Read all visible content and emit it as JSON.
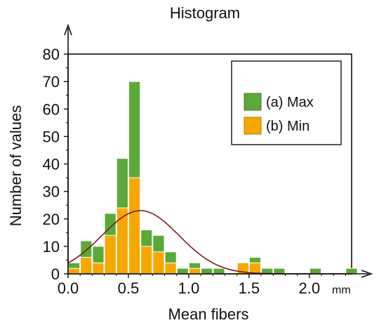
{
  "chart_data": {
    "type": "bar",
    "title": "Histogram",
    "xlabel": "Mean fibers",
    "ylabel": "Number of values",
    "x_unit": "mm",
    "xlim": [
      0.0,
      2.35
    ],
    "ylim": [
      0,
      80
    ],
    "x_ticks": [
      "0.0",
      "0.5",
      "1.0",
      "1.5",
      "2.0"
    ],
    "y_ticks": [
      "0",
      "10",
      "20",
      "30",
      "40",
      "50",
      "60",
      "70",
      "80"
    ],
    "bin_width": 0.1,
    "bin_starts": [
      0.0,
      0.1,
      0.2,
      0.3,
      0.4,
      0.5,
      0.6,
      0.7,
      0.8,
      0.9,
      1.0,
      1.1,
      1.2,
      1.3,
      1.4,
      1.5,
      1.6,
      1.7,
      1.8,
      1.9,
      2.0,
      2.1,
      2.2,
      2.3
    ],
    "series": [
      {
        "name": "(a) Max",
        "color": "#5aaa3a",
        "values": [
          4,
          12,
          10,
          22,
          42,
          70,
          16,
          14,
          8,
          2,
          4,
          2,
          2,
          0,
          4,
          6,
          2,
          2,
          0,
          0,
          2,
          0,
          0,
          2
        ]
      },
      {
        "name": "(b) Min",
        "color": "#f7a800",
        "values": [
          2,
          6,
          4,
          14,
          24,
          35,
          10,
          8,
          4,
          0,
          2,
          0,
          0,
          0,
          4,
          4,
          0,
          0,
          0,
          0,
          0,
          0,
          0,
          0
        ]
      }
    ],
    "fit_curve": {
      "color": "#7a1a1a",
      "mean": 0.6,
      "sd": 0.32,
      "peak": 23,
      "baseline": 0
    },
    "legend_position": "top-right",
    "grid": false
  }
}
